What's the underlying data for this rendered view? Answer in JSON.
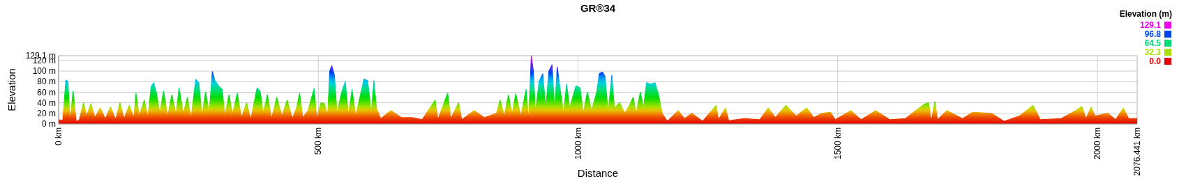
{
  "chart_data": {
    "type": "area",
    "title": "GR®34",
    "xlabel": "Distance",
    "ylabel": "Elevation",
    "clabel": "Elevation (m)",
    "xlim": [
      0,
      2076.441
    ],
    "ylim": [
      0,
      129.1
    ],
    "xticks": [
      {
        "value": 0,
        "label": "0 km"
      },
      {
        "value": 500,
        "label": "500 km"
      },
      {
        "value": 1000,
        "label": "1000 km"
      },
      {
        "value": 1500,
        "label": "1500 km"
      },
      {
        "value": 2000,
        "label": "2000 km"
      },
      {
        "value": 2076.441,
        "label": "2076.441 km"
      }
    ],
    "yticks": [
      {
        "value": 0,
        "label": "0 m"
      },
      {
        "value": 20,
        "label": "20 m"
      },
      {
        "value": 40,
        "label": "40 m"
      },
      {
        "value": 60,
        "label": "60 m"
      },
      {
        "value": 80,
        "label": "80 m"
      },
      {
        "value": 100,
        "label": "100 m"
      },
      {
        "value": 120,
        "label": "120 m"
      },
      {
        "value": 129.1,
        "label": "129.1 m"
      }
    ],
    "clim": [
      0,
      129.1
    ],
    "cticks": [
      {
        "value": 129.1,
        "label": "129.1"
      },
      {
        "value": 96.8,
        "label": "96.8"
      },
      {
        "value": 64.5,
        "label": "64.5"
      },
      {
        "value": 32.3,
        "label": "32.3"
      },
      {
        "value": 0,
        "label": "0.0"
      }
    ],
    "grid": true,
    "series": [
      {
        "x": [
          0,
          8,
          14,
          18,
          22,
          28,
          34,
          40,
          48,
          54,
          62,
          70,
          80,
          90,
          100,
          110,
          118,
          126,
          136,
          145,
          149,
          155,
          165,
          172,
          178,
          183,
          188,
          195,
          202,
          210,
          218,
          226,
          232,
          240,
          248,
          255,
          264,
          270,
          276,
          283,
          290,
          296,
          301,
          308,
          315,
          320,
          328,
          335,
          344,
          352,
          362,
          370,
          382,
          388,
          394,
          402,
          410,
          420,
          430,
          440,
          450,
          458,
          464,
          470,
          480,
          492,
          497,
          505,
          512,
          518,
          522,
          526,
          531,
          536,
          545,
          552,
          558,
          565,
          572,
          580,
          588,
          595,
          602,
          607,
          612,
          620,
          640,
          660,
          680,
          700,
          725,
          730,
          749,
          755,
          770,
          776,
          800,
          820,
          843,
          850,
          858,
          866,
          873,
          880,
          890,
          900,
          905,
          910,
          914,
          918,
          925,
          932,
          938,
          944,
          950,
          955,
          960,
          965,
          972,
          978,
          984,
          996,
          1004,
          1010,
          1018,
          1026,
          1036,
          1041,
          1047,
          1052,
          1058,
          1065,
          1070,
          1080,
          1090,
          1099,
          1106,
          1112,
          1120,
          1126,
          1132,
          1140,
          1148,
          1155,
          1162,
          1172,
          1193,
          1205,
          1219,
          1240,
          1266,
          1270,
          1284,
          1290,
          1320,
          1350,
          1366,
          1380,
          1400,
          1420,
          1440,
          1454,
          1470,
          1486,
          1495,
          1525,
          1545,
          1573,
          1600,
          1630,
          1666,
          1675,
          1680,
          1687,
          1692,
          1710,
          1740,
          1760,
          1796,
          1820,
          1850,
          1876,
          1890,
          1930,
          1958,
          1970,
          1978,
          1988,
          1995,
          2020,
          2035,
          2050,
          2060,
          2076.441
        ],
        "values": [
          8,
          6,
          83,
          80,
          5,
          62,
          4,
          8,
          40,
          15,
          38,
          12,
          30,
          10,
          32,
          8,
          40,
          10,
          35,
          12,
          58,
          15,
          45,
          12,
          70,
          78,
          60,
          20,
          62,
          15,
          55,
          18,
          68,
          20,
          50,
          10,
          84,
          78,
          15,
          60,
          20,
          99,
          82,
          72,
          65,
          15,
          55,
          18,
          58,
          12,
          40,
          8,
          68,
          62,
          20,
          55,
          10,
          50,
          15,
          45,
          10,
          30,
          58,
          12,
          25,
          67,
          10,
          40,
          38,
          15,
          100,
          110,
          92,
          20,
          60,
          80,
          15,
          65,
          15,
          50,
          85,
          82,
          20,
          82,
          30,
          10,
          25,
          12,
          12,
          8,
          45,
          8,
          58,
          10,
          40,
          8,
          25,
          12,
          20,
          45,
          15,
          55,
          18,
          57,
          15,
          65,
          5,
          129.1,
          100,
          20,
          80,
          95,
          30,
          100,
          112,
          25,
          108,
          70,
          20,
          75,
          30,
          72,
          68,
          20,
          60,
          25,
          60,
          95,
          98,
          90,
          20,
          92,
          30,
          40,
          20,
          35,
          50,
          20,
          60,
          30,
          78,
          75,
          78,
          55,
          20,
          5,
          25,
          10,
          20,
          5,
          35,
          8,
          30,
          6,
          10,
          8,
          30,
          12,
          35,
          15,
          30,
          12,
          20,
          22,
          8,
          25,
          8,
          25,
          8,
          10,
          37,
          40,
          5,
          42,
          8,
          25,
          10,
          22,
          20,
          5,
          15,
          35,
          8,
          10,
          25,
          33,
          10,
          32,
          15,
          20,
          8,
          30,
          10,
          10
        ]
      }
    ]
  }
}
